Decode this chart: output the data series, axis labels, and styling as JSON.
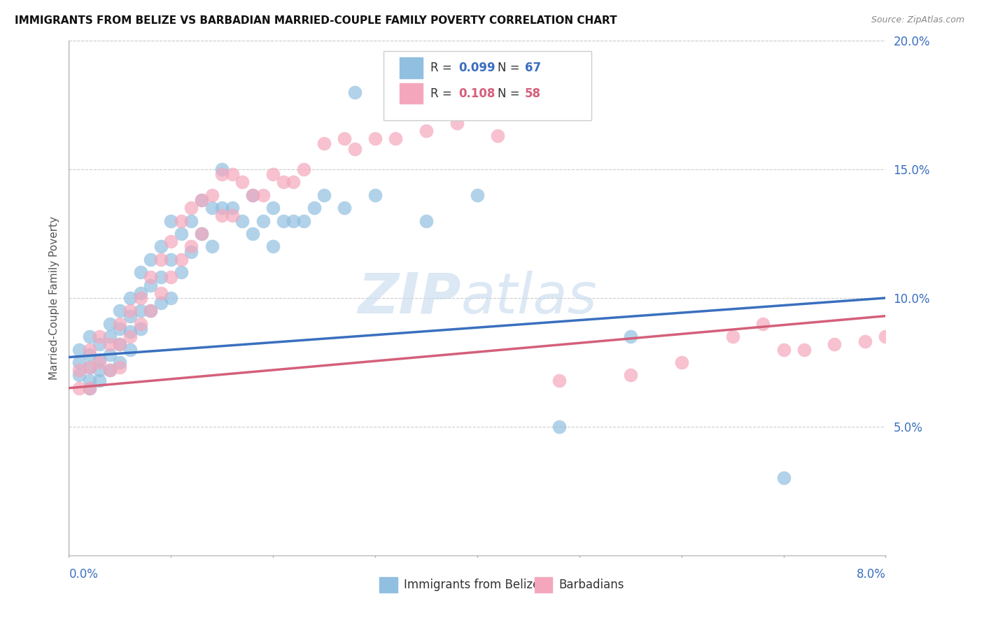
{
  "title": "IMMIGRANTS FROM BELIZE VS BARBADIAN MARRIED-COUPLE FAMILY POVERTY CORRELATION CHART",
  "source": "Source: ZipAtlas.com",
  "ylabel": "Married-Couple Family Poverty",
  "xmin": 0.0,
  "xmax": 0.08,
  "ymin": 0.0,
  "ymax": 0.2,
  "yticks": [
    0.05,
    0.1,
    0.15,
    0.2
  ],
  "ytick_labels": [
    "5.0%",
    "10.0%",
    "15.0%",
    "20.0%"
  ],
  "blue_color": "#90bfe0",
  "pink_color": "#f4a7bc",
  "blue_line_color": "#3a6fbf",
  "pink_line_color": "#d45f7a",
  "watermark_zip": "ZIP",
  "watermark_atlas": "atlas",
  "legend_r1_label": "R = ",
  "legend_r1_val": "0.099",
  "legend_n1_label": "  N = ",
  "legend_n1_val": "67",
  "legend_r2_label": "R = ",
  "legend_r2_val": "0.108",
  "legend_n2_label": "  N = ",
  "legend_n2_val": "58",
  "blue_line_x": [
    0.0,
    0.08
  ],
  "blue_line_y": [
    0.077,
    0.1
  ],
  "pink_line_x": [
    0.0,
    0.08
  ],
  "pink_line_y": [
    0.065,
    0.093
  ],
  "scatter_blue_x": [
    0.001,
    0.001,
    0.001,
    0.002,
    0.002,
    0.002,
    0.002,
    0.002,
    0.003,
    0.003,
    0.003,
    0.003,
    0.004,
    0.004,
    0.004,
    0.004,
    0.005,
    0.005,
    0.005,
    0.005,
    0.006,
    0.006,
    0.006,
    0.006,
    0.007,
    0.007,
    0.007,
    0.007,
    0.008,
    0.008,
    0.008,
    0.009,
    0.009,
    0.009,
    0.01,
    0.01,
    0.01,
    0.011,
    0.011,
    0.012,
    0.012,
    0.013,
    0.013,
    0.014,
    0.014,
    0.015,
    0.015,
    0.016,
    0.017,
    0.018,
    0.018,
    0.019,
    0.02,
    0.02,
    0.021,
    0.022,
    0.023,
    0.024,
    0.025,
    0.027,
    0.028,
    0.03,
    0.035,
    0.04,
    0.048,
    0.055,
    0.07
  ],
  "scatter_blue_y": [
    0.08,
    0.075,
    0.07,
    0.085,
    0.078,
    0.073,
    0.068,
    0.065,
    0.082,
    0.076,
    0.072,
    0.068,
    0.09,
    0.085,
    0.078,
    0.072,
    0.095,
    0.088,
    0.082,
    0.075,
    0.1,
    0.093,
    0.087,
    0.08,
    0.11,
    0.102,
    0.095,
    0.088,
    0.115,
    0.105,
    0.095,
    0.12,
    0.108,
    0.098,
    0.13,
    0.115,
    0.1,
    0.125,
    0.11,
    0.13,
    0.118,
    0.138,
    0.125,
    0.135,
    0.12,
    0.15,
    0.135,
    0.135,
    0.13,
    0.14,
    0.125,
    0.13,
    0.135,
    0.12,
    0.13,
    0.13,
    0.13,
    0.135,
    0.14,
    0.135,
    0.18,
    0.14,
    0.13,
    0.14,
    0.05,
    0.085,
    0.03
  ],
  "scatter_pink_x": [
    0.001,
    0.001,
    0.002,
    0.002,
    0.002,
    0.003,
    0.003,
    0.004,
    0.004,
    0.005,
    0.005,
    0.005,
    0.006,
    0.006,
    0.007,
    0.007,
    0.008,
    0.008,
    0.009,
    0.009,
    0.01,
    0.01,
    0.011,
    0.011,
    0.012,
    0.012,
    0.013,
    0.013,
    0.014,
    0.015,
    0.015,
    0.016,
    0.016,
    0.017,
    0.018,
    0.019,
    0.02,
    0.021,
    0.022,
    0.023,
    0.025,
    0.027,
    0.028,
    0.03,
    0.032,
    0.035,
    0.038,
    0.042,
    0.048,
    0.055,
    0.06,
    0.065,
    0.068,
    0.07,
    0.072,
    0.075,
    0.078,
    0.08
  ],
  "scatter_pink_y": [
    0.072,
    0.065,
    0.08,
    0.073,
    0.065,
    0.085,
    0.075,
    0.082,
    0.072,
    0.09,
    0.082,
    0.073,
    0.095,
    0.085,
    0.1,
    0.09,
    0.108,
    0.095,
    0.115,
    0.102,
    0.122,
    0.108,
    0.13,
    0.115,
    0.135,
    0.12,
    0.138,
    0.125,
    0.14,
    0.148,
    0.132,
    0.148,
    0.132,
    0.145,
    0.14,
    0.14,
    0.148,
    0.145,
    0.145,
    0.15,
    0.16,
    0.162,
    0.158,
    0.162,
    0.162,
    0.165,
    0.168,
    0.163,
    0.068,
    0.07,
    0.075,
    0.085,
    0.09,
    0.08,
    0.08,
    0.082,
    0.083,
    0.085
  ]
}
